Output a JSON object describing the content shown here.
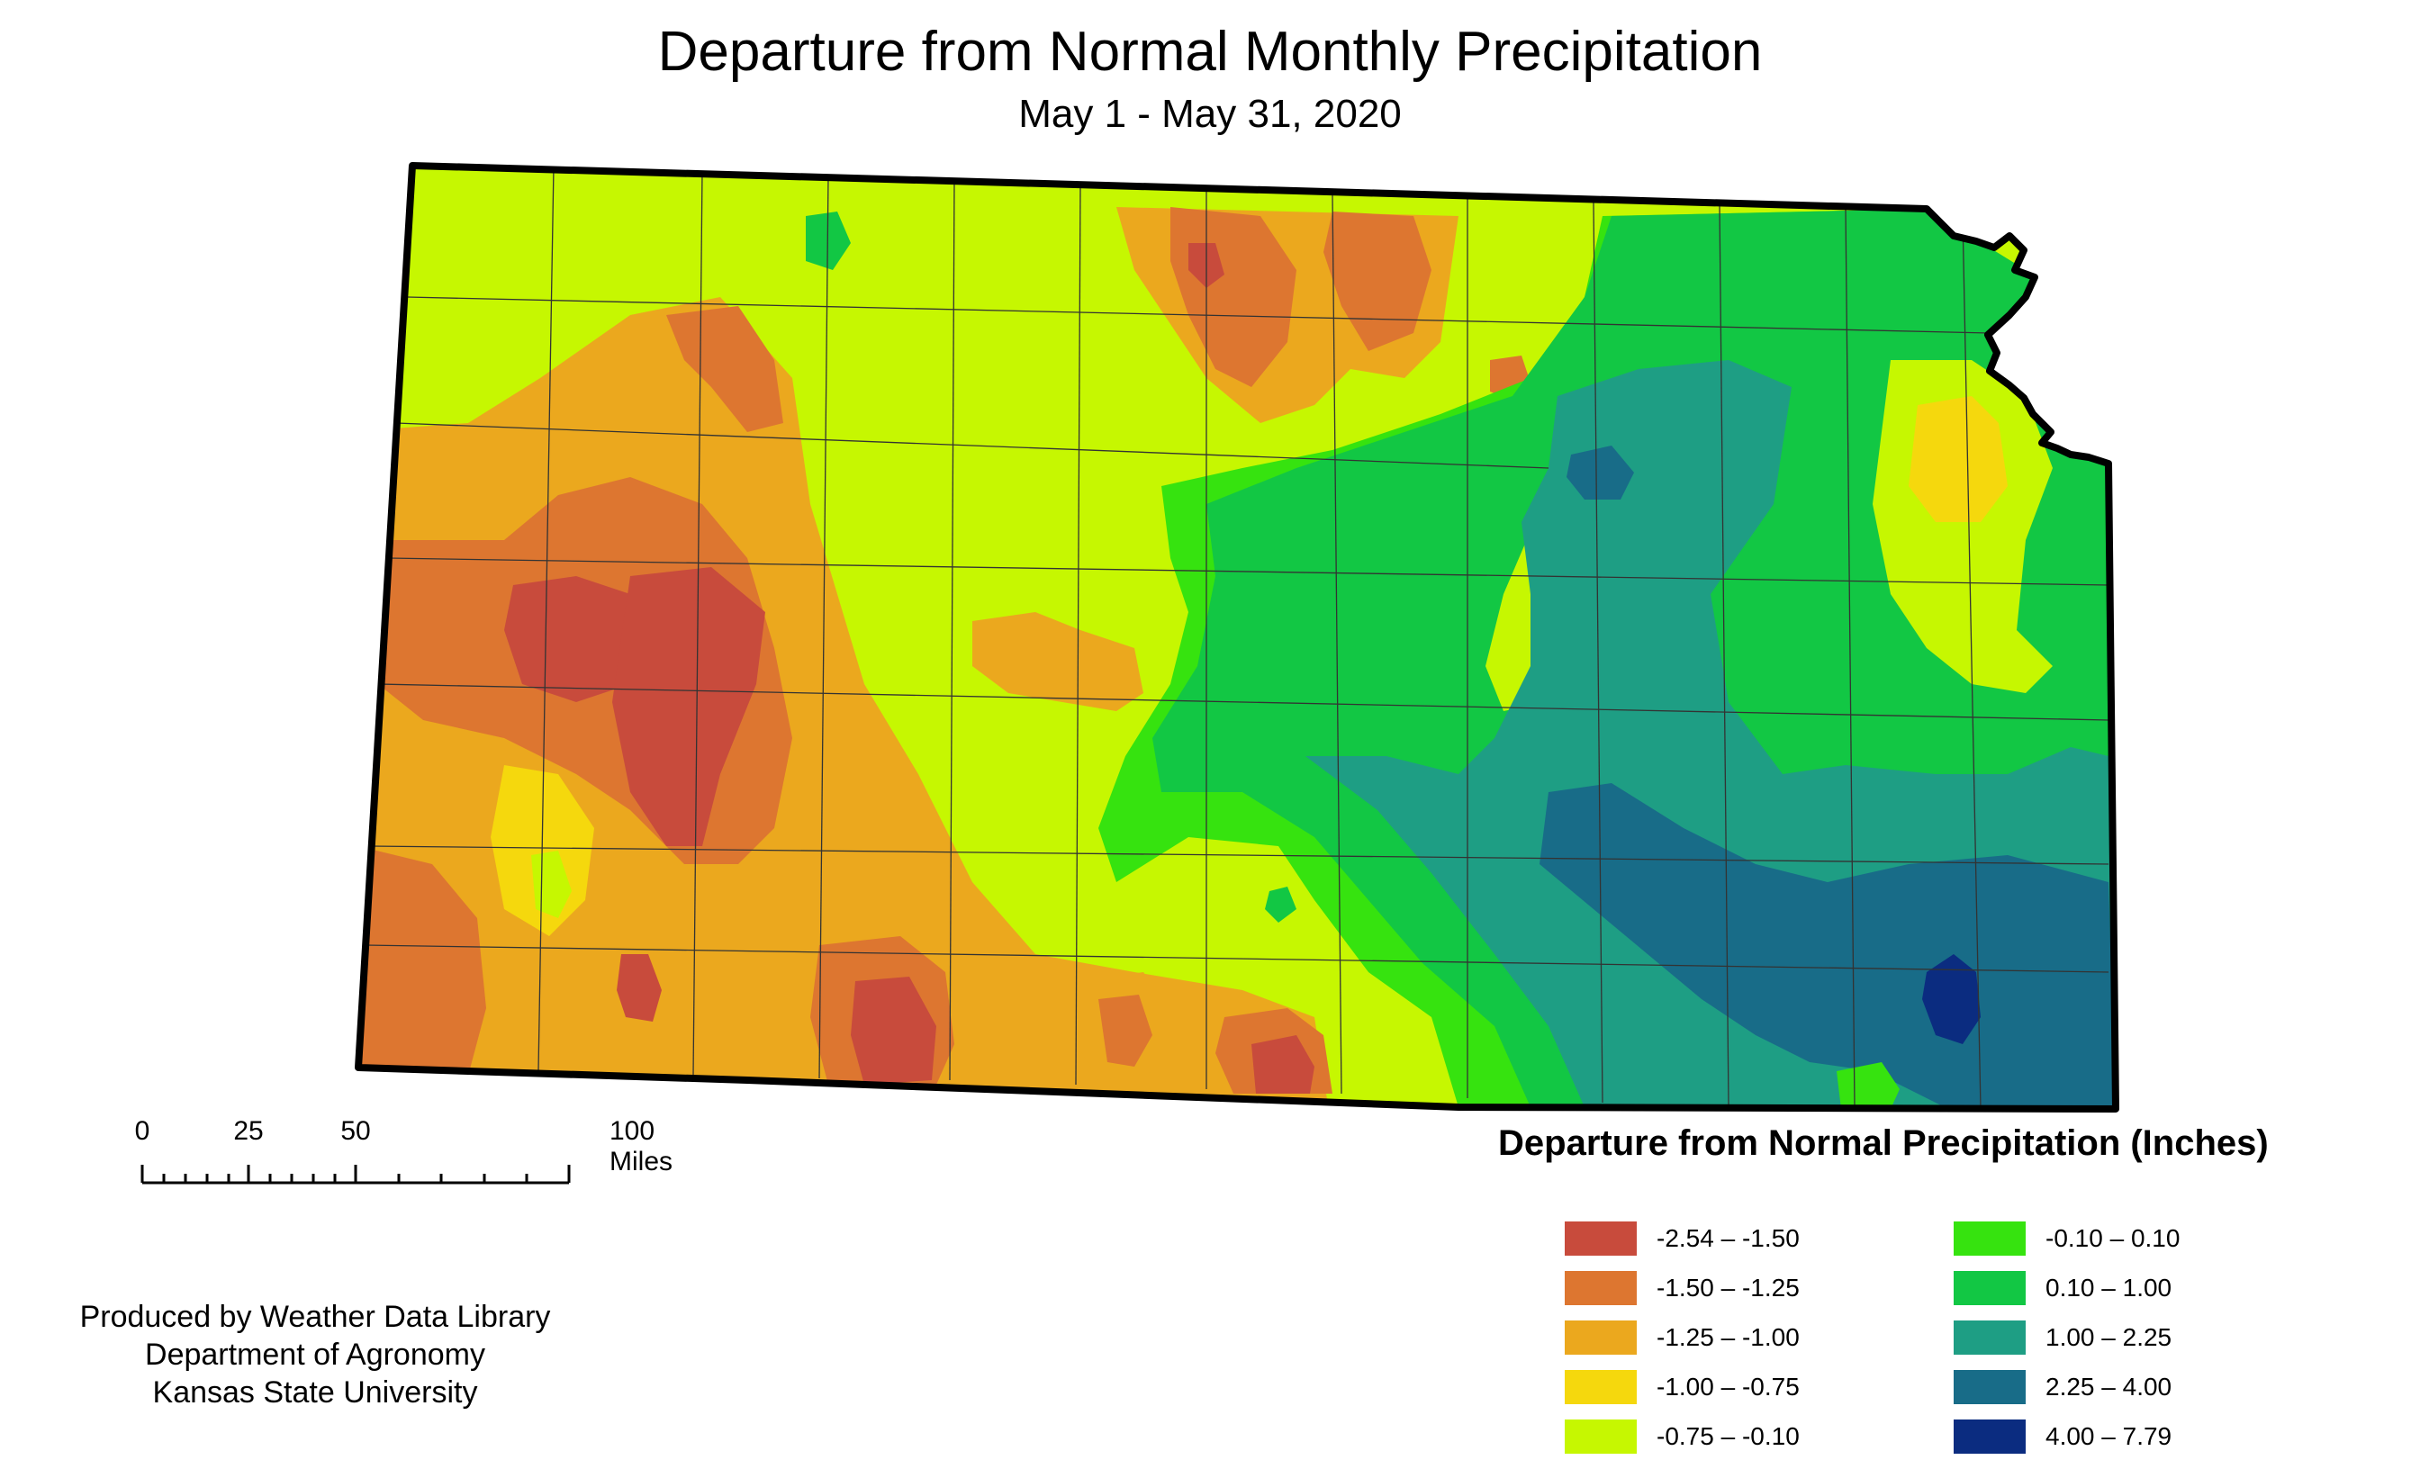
{
  "title": "Departure from Normal Monthly Precipitation",
  "subtitle": "May 1 - May 31, 2020",
  "scale_bar": {
    "ticks": [
      "0",
      "25",
      "50",
      "100 Miles"
    ]
  },
  "credits": {
    "line1": "Produced by Weather Data Library",
    "line2": "Department of Agronomy",
    "line3": "Kansas State University"
  },
  "legend": {
    "title": "Departure from Normal Precipitation (Inches)",
    "items": [
      {
        "label": "-2.54 – -1.50",
        "color": "#C84B3C"
      },
      {
        "label": "-1.50 – -1.25",
        "color": "#DD7630"
      },
      {
        "label": "-1.25 – -1.00",
        "color": "#EBA81E"
      },
      {
        "label": "-1.00 – -0.75",
        "color": "#F5D80D"
      },
      {
        "label": "-0.75 – -0.10",
        "color": "#C6F701"
      },
      {
        "label": "-0.10 – 0.10",
        "color": "#36E30F"
      },
      {
        "label": "0.10 – 1.00",
        "color": "#12C744"
      },
      {
        "label": "1.00 – 2.25",
        "color": "#1E9E84"
      },
      {
        "label": "2.25 – 4.00",
        "color": "#186C88"
      },
      {
        "label": "4.00 – 7.79",
        "color": "#0B2C80"
      }
    ]
  }
}
